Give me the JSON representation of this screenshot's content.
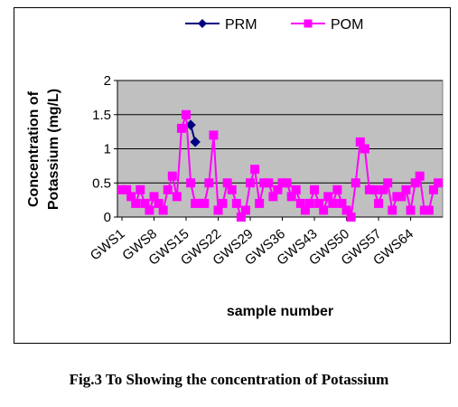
{
  "chart_data": {
    "type": "line",
    "xlabel": "sample number",
    "ylabel": "Concentration of Potassium (mg/L)",
    "ylabel_lines": [
      "Concentration of",
      "Potassium (mg/L)"
    ],
    "ylim": [
      0,
      2
    ],
    "y_ticks": [
      "0",
      "0.5",
      "1",
      "1.5",
      "2"
    ],
    "x_tick_labels": [
      "GWS1",
      "GWS8",
      "GWS15",
      "GWS22",
      "GWS29",
      "GWS36",
      "GWS43",
      "GWS50",
      "GWS57",
      "GWS64"
    ],
    "plot_background": "#c0c0c0",
    "grid": "horizontal",
    "legend_position": "top",
    "series": [
      {
        "name": "PRM",
        "color": "#000080",
        "marker": "diamond",
        "x": [
          16,
          17
        ],
        "values": [
          1.35,
          1.1
        ]
      },
      {
        "name": "POM",
        "color": "#ff00ff",
        "marker": "square",
        "x": [
          1,
          2,
          3,
          4,
          5,
          6,
          7,
          8,
          9,
          10,
          11,
          12,
          13,
          14,
          15,
          16,
          17,
          18,
          19,
          20,
          21,
          22,
          23,
          24,
          25,
          26,
          27,
          28,
          29,
          30,
          31,
          32,
          33,
          34,
          35,
          36,
          37,
          38,
          39,
          40,
          41,
          42,
          43,
          44,
          45,
          46,
          47,
          48,
          49,
          50,
          51,
          52,
          53,
          54,
          55,
          56,
          57,
          58,
          59,
          60,
          61,
          62,
          63,
          64,
          65,
          66,
          67,
          68,
          69,
          70
        ],
        "values": [
          0.4,
          0.4,
          0.3,
          0.2,
          0.4,
          0.2,
          0.1,
          0.3,
          0.2,
          0.1,
          0.4,
          0.6,
          0.3,
          1.3,
          1.5,
          0.5,
          0.2,
          0.2,
          0.2,
          0.5,
          1.2,
          0.1,
          0.2,
          0.5,
          0.4,
          0.2,
          0.0,
          0.1,
          0.5,
          0.7,
          0.2,
          0.5,
          0.5,
          0.3,
          0.4,
          0.5,
          0.5,
          0.3,
          0.4,
          0.2,
          0.1,
          0.2,
          0.4,
          0.2,
          0.1,
          0.3,
          0.2,
          0.4,
          0.2,
          0.1,
          0.0,
          0.5,
          1.1,
          1.0,
          0.4,
          0.4,
          0.2,
          0.4,
          0.5,
          0.1,
          0.3,
          0.3,
          0.4,
          0.1,
          0.5,
          0.6,
          0.1,
          0.1,
          0.4,
          0.5
        ]
      }
    ]
  },
  "caption": "Fig.3 To Showing the concentration of Potassium"
}
